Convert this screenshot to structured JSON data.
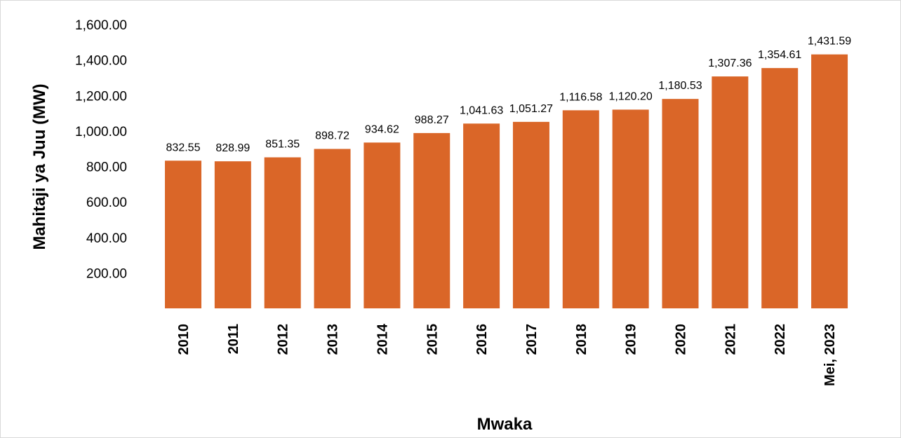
{
  "chart_data": {
    "type": "bar",
    "title": "",
    "xlabel": "Mwaka",
    "ylabel": "Mahitaji ya Juu (MW)",
    "ylim": [
      0,
      1600
    ],
    "yticks": [
      200,
      400,
      600,
      800,
      1000,
      1200,
      1400,
      1600
    ],
    "ytick_labels": [
      "200.00",
      "400.00",
      "600.00",
      "800.00",
      "1,000.00",
      "1,200.00",
      "1,400.00",
      "1,600.00"
    ],
    "categories": [
      "2010",
      "2011",
      "2012",
      "2013",
      "2014",
      "2015",
      "2016",
      "2017",
      "2018",
      "2019",
      "2020",
      "2021",
      "2022",
      "Mei, 2023"
    ],
    "values": [
      832.55,
      828.99,
      851.35,
      898.72,
      934.62,
      988.27,
      1041.63,
      1051.27,
      1116.58,
      1120.2,
      1180.53,
      1307.36,
      1354.61,
      1431.59
    ],
    "data_labels": [
      "832.55",
      "828.99",
      "851.35",
      "898.72",
      "934.62",
      "988.27",
      "1,041.63",
      "1,051.27",
      "1,116.58",
      "1,120.20",
      "1,180.53",
      "1,307.36",
      "1,354.61",
      "1,431.59"
    ],
    "bar_color": "#DA6628",
    "grid": false,
    "legend": "none"
  }
}
